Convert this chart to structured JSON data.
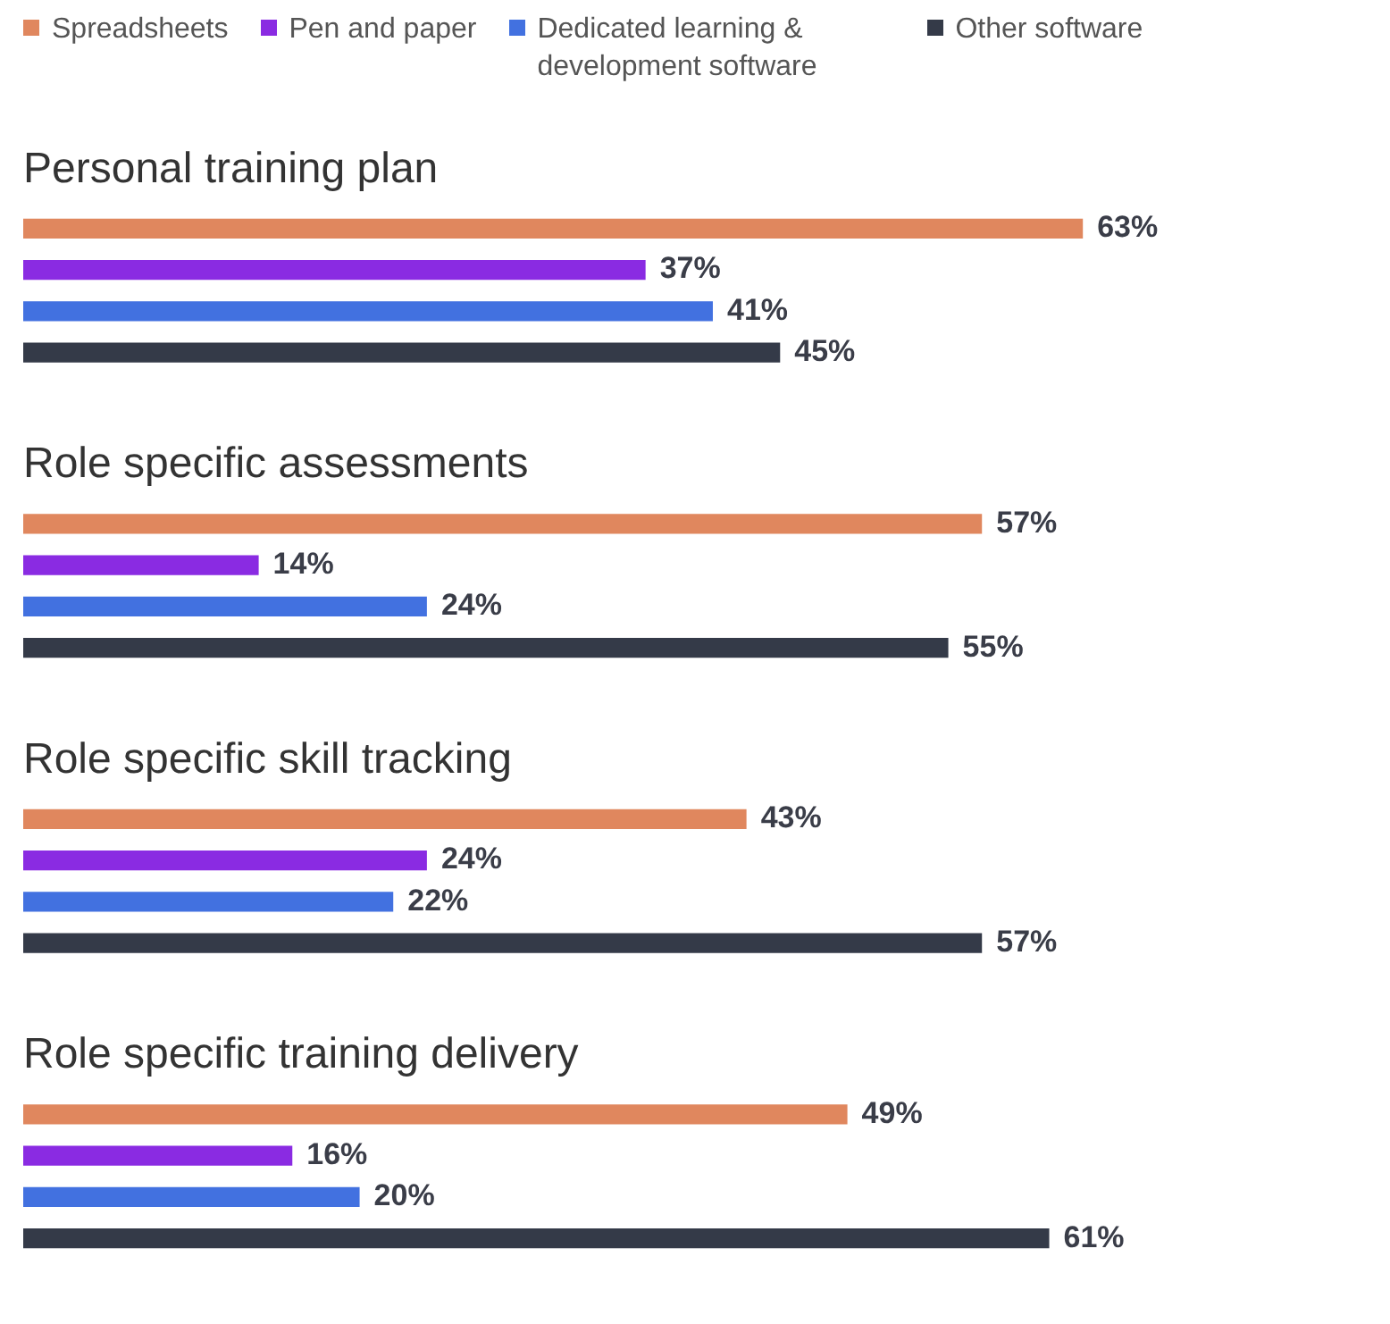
{
  "chart_data": {
    "type": "bar",
    "orientation": "horizontal",
    "categories": [
      "Personal training plan",
      "Role specific assessments",
      "Role specific skill tracking",
      "Role specific training delivery"
    ],
    "series": [
      {
        "name": "Spreadsheets",
        "color": "#e0875e",
        "values": [
          63,
          57,
          43,
          49
        ],
        "value_labels": [
          "63%",
          "57%",
          "43%",
          "49%"
        ]
      },
      {
        "name": "Pen and paper",
        "color": "#8a2be2",
        "values": [
          37,
          14,
          24,
          16
        ],
        "value_labels": [
          "37%",
          "14%",
          "24%",
          "16%"
        ]
      },
      {
        "name": "Dedicated learning & development software",
        "color": "#4271e0",
        "values": [
          41,
          24,
          22,
          20
        ],
        "value_labels": [
          "41%",
          "24%",
          "22%",
          "20%"
        ]
      },
      {
        "name": "Other software",
        "color": "#343a48",
        "values": [
          45,
          55,
          57,
          61
        ],
        "value_labels": [
          "45%",
          "55%",
          "57%",
          "61%"
        ]
      }
    ],
    "tick_labels": false,
    "legend": "top left"
  }
}
